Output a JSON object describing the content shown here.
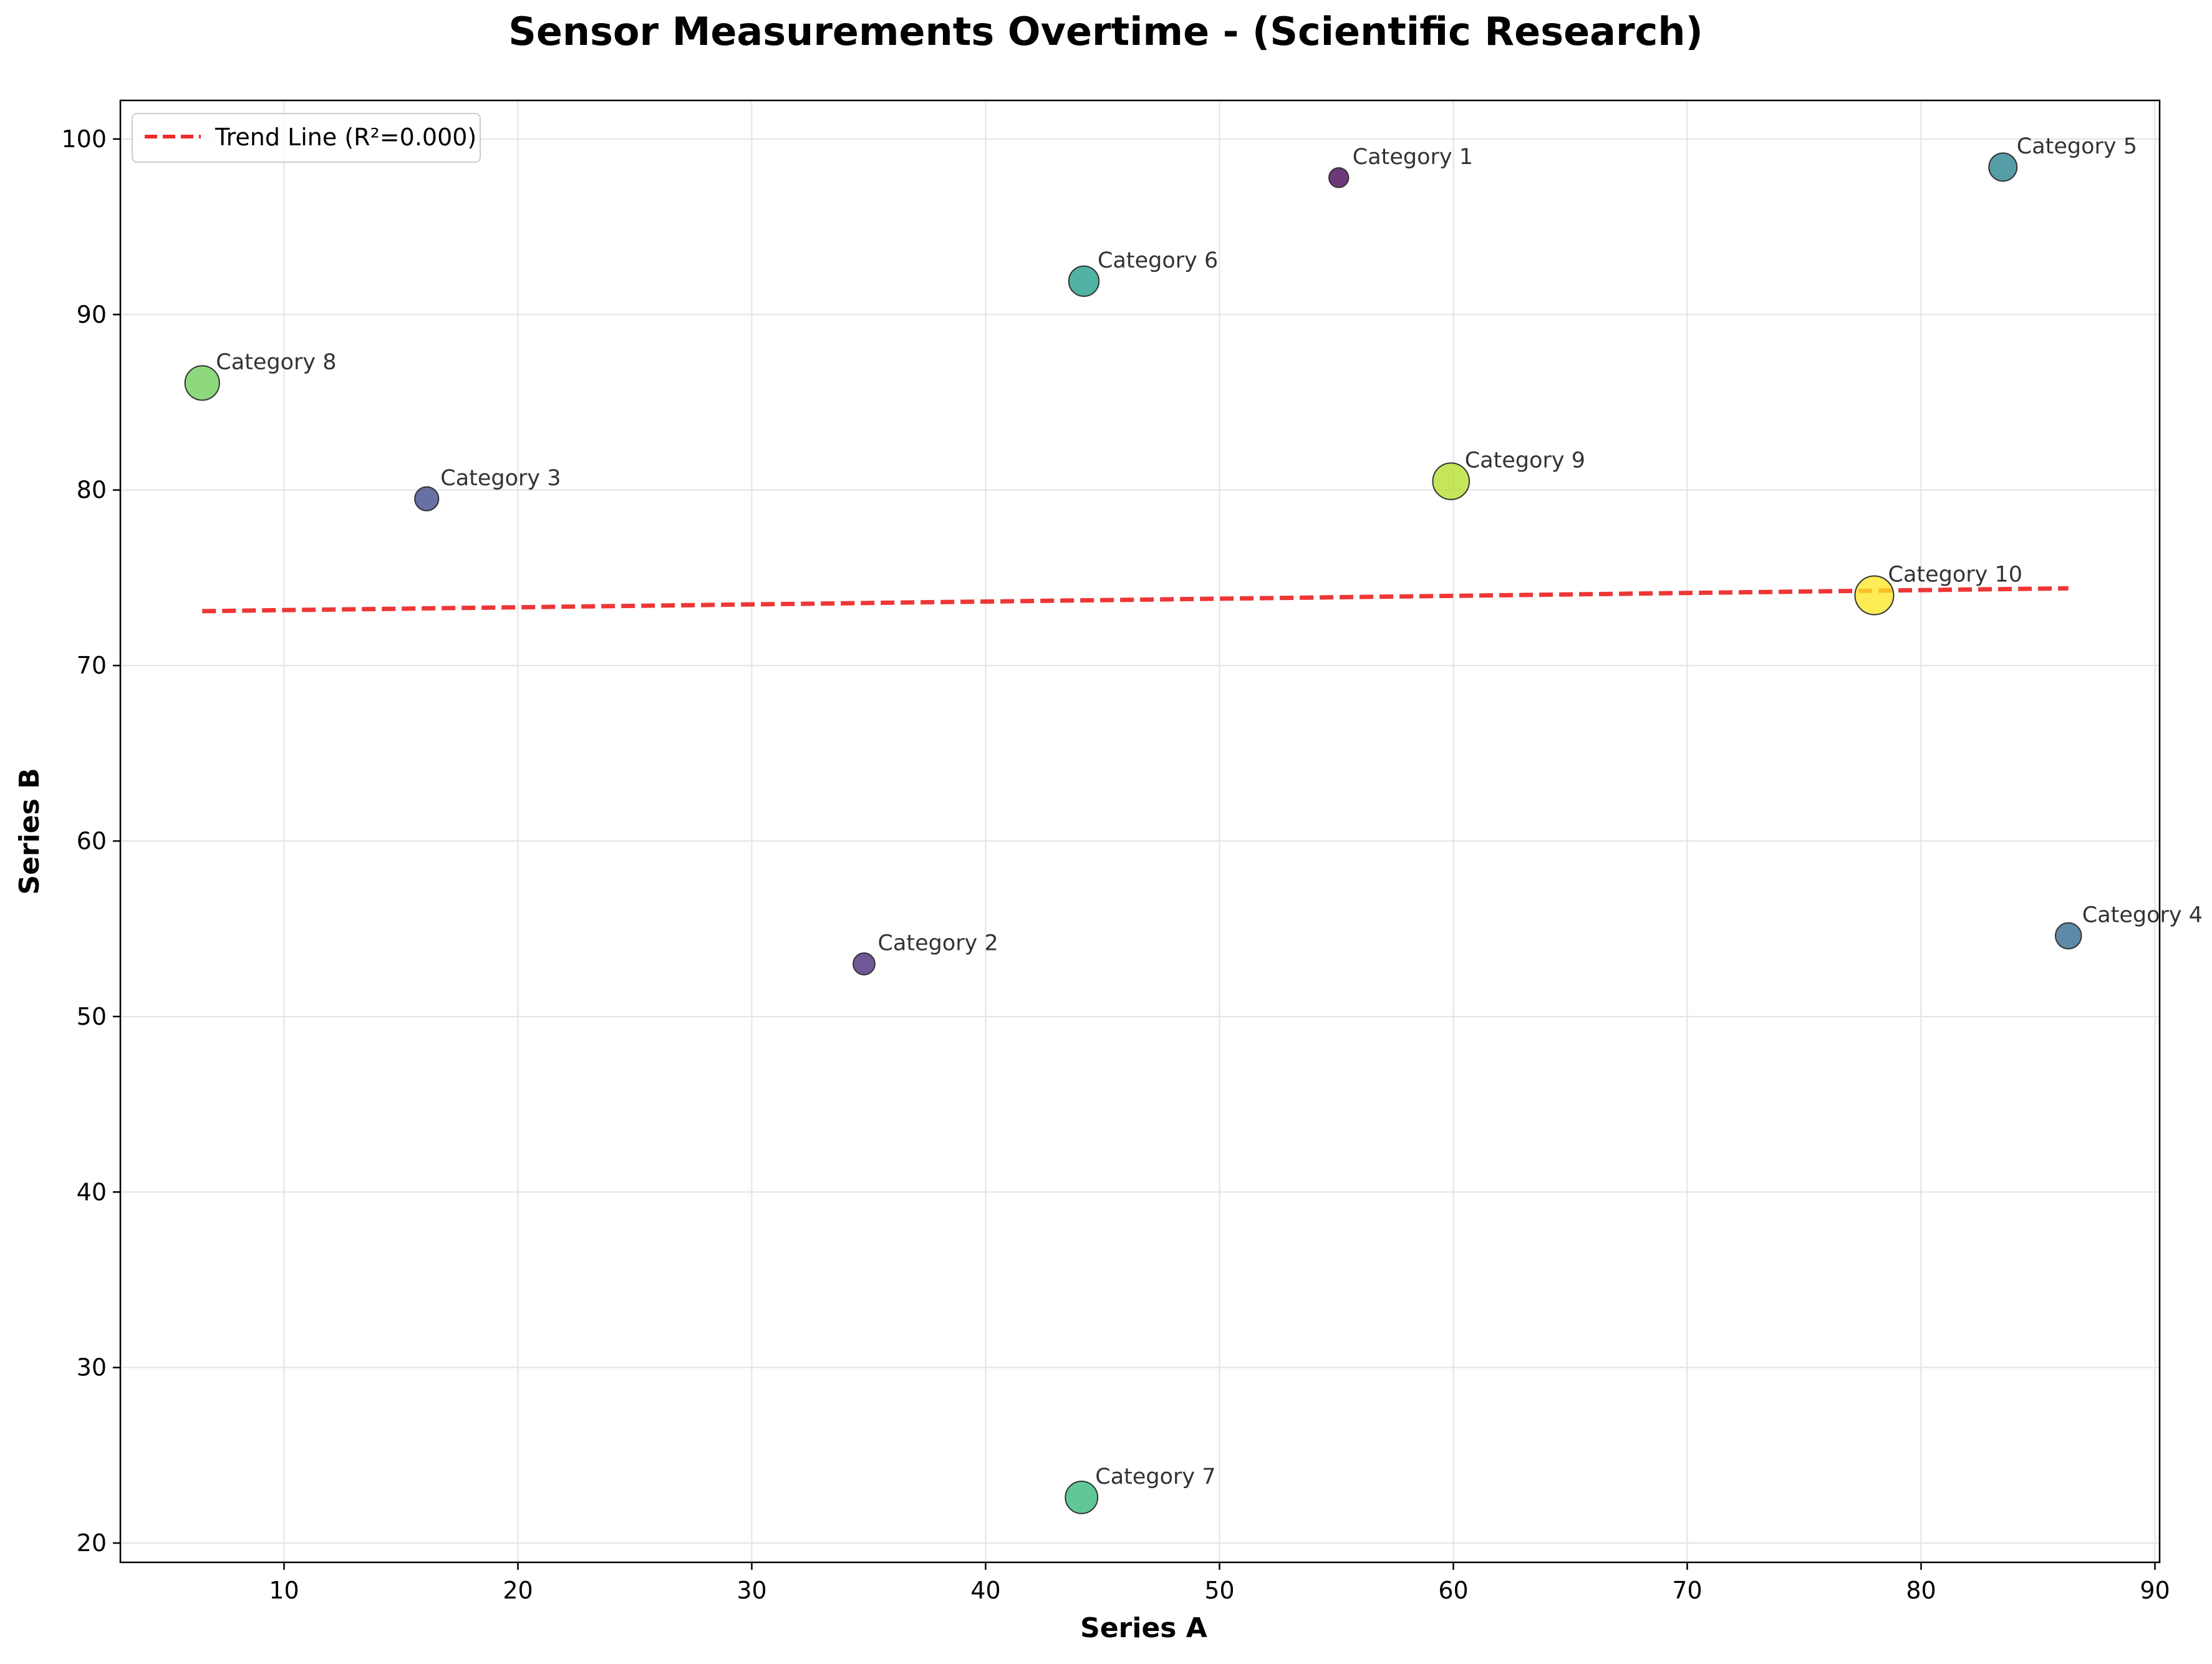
{
  "chart_data": {
    "type": "scatter",
    "title": "Sensor Measurements Overtime - (Scientific Research)",
    "xlabel": "Series A",
    "ylabel": "Series B",
    "xlim": [
      3.0,
      90.2
    ],
    "ylim": [
      18.9,
      102.2
    ],
    "xticks": [
      10,
      20,
      30,
      40,
      50,
      60,
      70,
      80,
      90
    ],
    "yticks": [
      20,
      30,
      40,
      50,
      60,
      70,
      80,
      90,
      100
    ],
    "grid": true,
    "legend": {
      "position": "top-left",
      "entries": [
        "Trend Line (R²=0.000)"
      ]
    },
    "colors": {
      "trend": "#ee2b2b",
      "colormap": "viridis"
    },
    "points": [
      {
        "label": "Category 1",
        "x": 55.1,
        "y": 97.8,
        "size": 0.1,
        "color": "#440154"
      },
      {
        "label": "Category 2",
        "x": 34.8,
        "y": 53.0,
        "size": 0.2,
        "color": "#482878"
      },
      {
        "label": "Category 3",
        "x": 16.1,
        "y": 79.5,
        "size": 0.3,
        "color": "#3e4989"
      },
      {
        "label": "Category 4",
        "x": 86.3,
        "y": 54.6,
        "size": 0.4,
        "color": "#31688e"
      },
      {
        "label": "Category 5",
        "x": 83.5,
        "y": 98.4,
        "size": 0.5,
        "color": "#26828e"
      },
      {
        "label": "Category 6",
        "x": 44.2,
        "y": 91.9,
        "size": 0.6,
        "color": "#1f9e89"
      },
      {
        "label": "Category 7",
        "x": 44.1,
        "y": 22.6,
        "size": 0.7,
        "color": "#35b779"
      },
      {
        "label": "Category 8",
        "x": 6.5,
        "y": 86.1,
        "size": 0.8,
        "color": "#6ece58"
      },
      {
        "label": "Category 9",
        "x": 59.9,
        "y": 80.5,
        "size": 0.9,
        "color": "#b5de2b"
      },
      {
        "label": "Category 10",
        "x": 78.0,
        "y": 74.0,
        "size": 1.0,
        "color": "#fde725"
      }
    ],
    "trend_line": {
      "name": "Trend Line (R²=0.000)",
      "x": [
        6.5,
        86.3
      ],
      "y": [
        73.1,
        74.4
      ]
    }
  }
}
